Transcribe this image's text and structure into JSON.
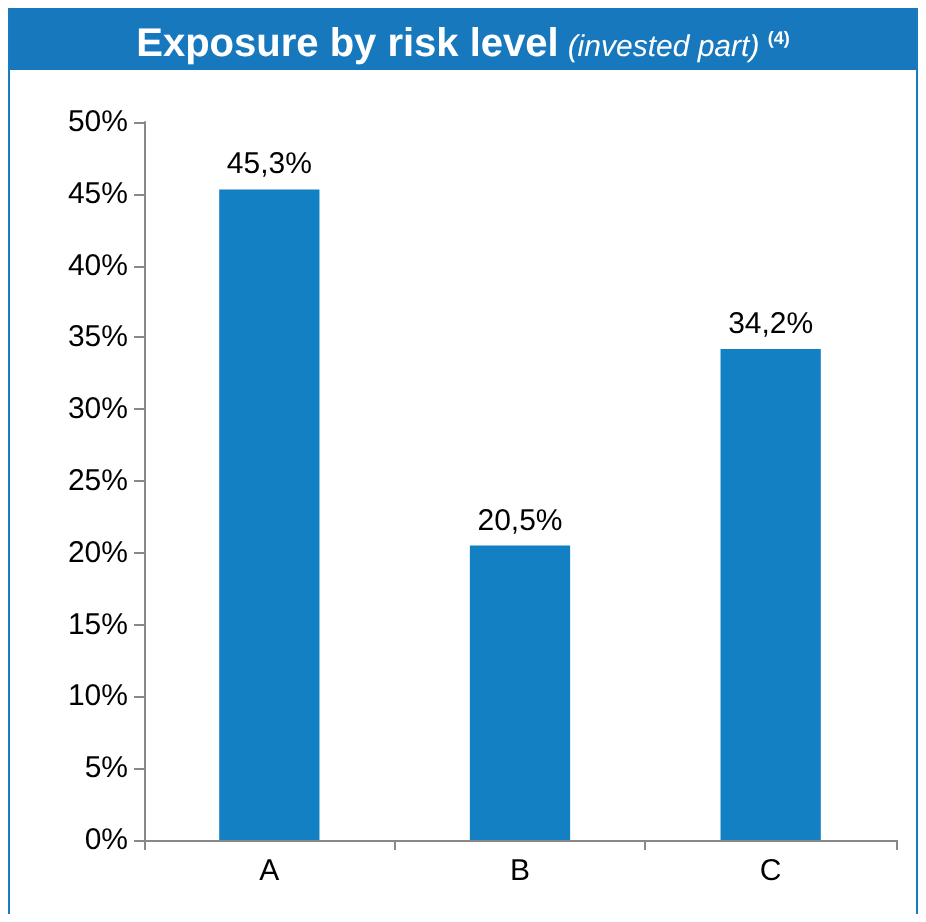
{
  "chart_data": {
    "type": "bar",
    "title": "Exposure by risk level",
    "subtitle": "(invested part) $^{(4)}$",
    "categories": [
      "A",
      "B",
      "C"
    ],
    "values": [
      45.3,
      20.5,
      34.2
    ],
    "value_labels": [
      "45,3%",
      "20,5%",
      "34,2%"
    ],
    "color": "#1280c2",
    "ylim": [
      0,
      50
    ],
    "yticks": [
      {
        "value": 0,
        "label": "0%"
      },
      {
        "value": 5,
        "label": "5%"
      },
      {
        "value": 10,
        "label": "10%"
      },
      {
        "value": 15,
        "label": "15%"
      },
      {
        "value": 20,
        "label": "20%"
      },
      {
        "value": 25,
        "label": "25%"
      },
      {
        "value": 30,
        "label": "30%"
      },
      {
        "value": 35,
        "label": "35%"
      },
      {
        "value": 40,
        "label": "40%"
      },
      {
        "value": 45,
        "label": "45%"
      },
      {
        "value": 50,
        "label": "50%"
      }
    ],
    "grid": false
  }
}
